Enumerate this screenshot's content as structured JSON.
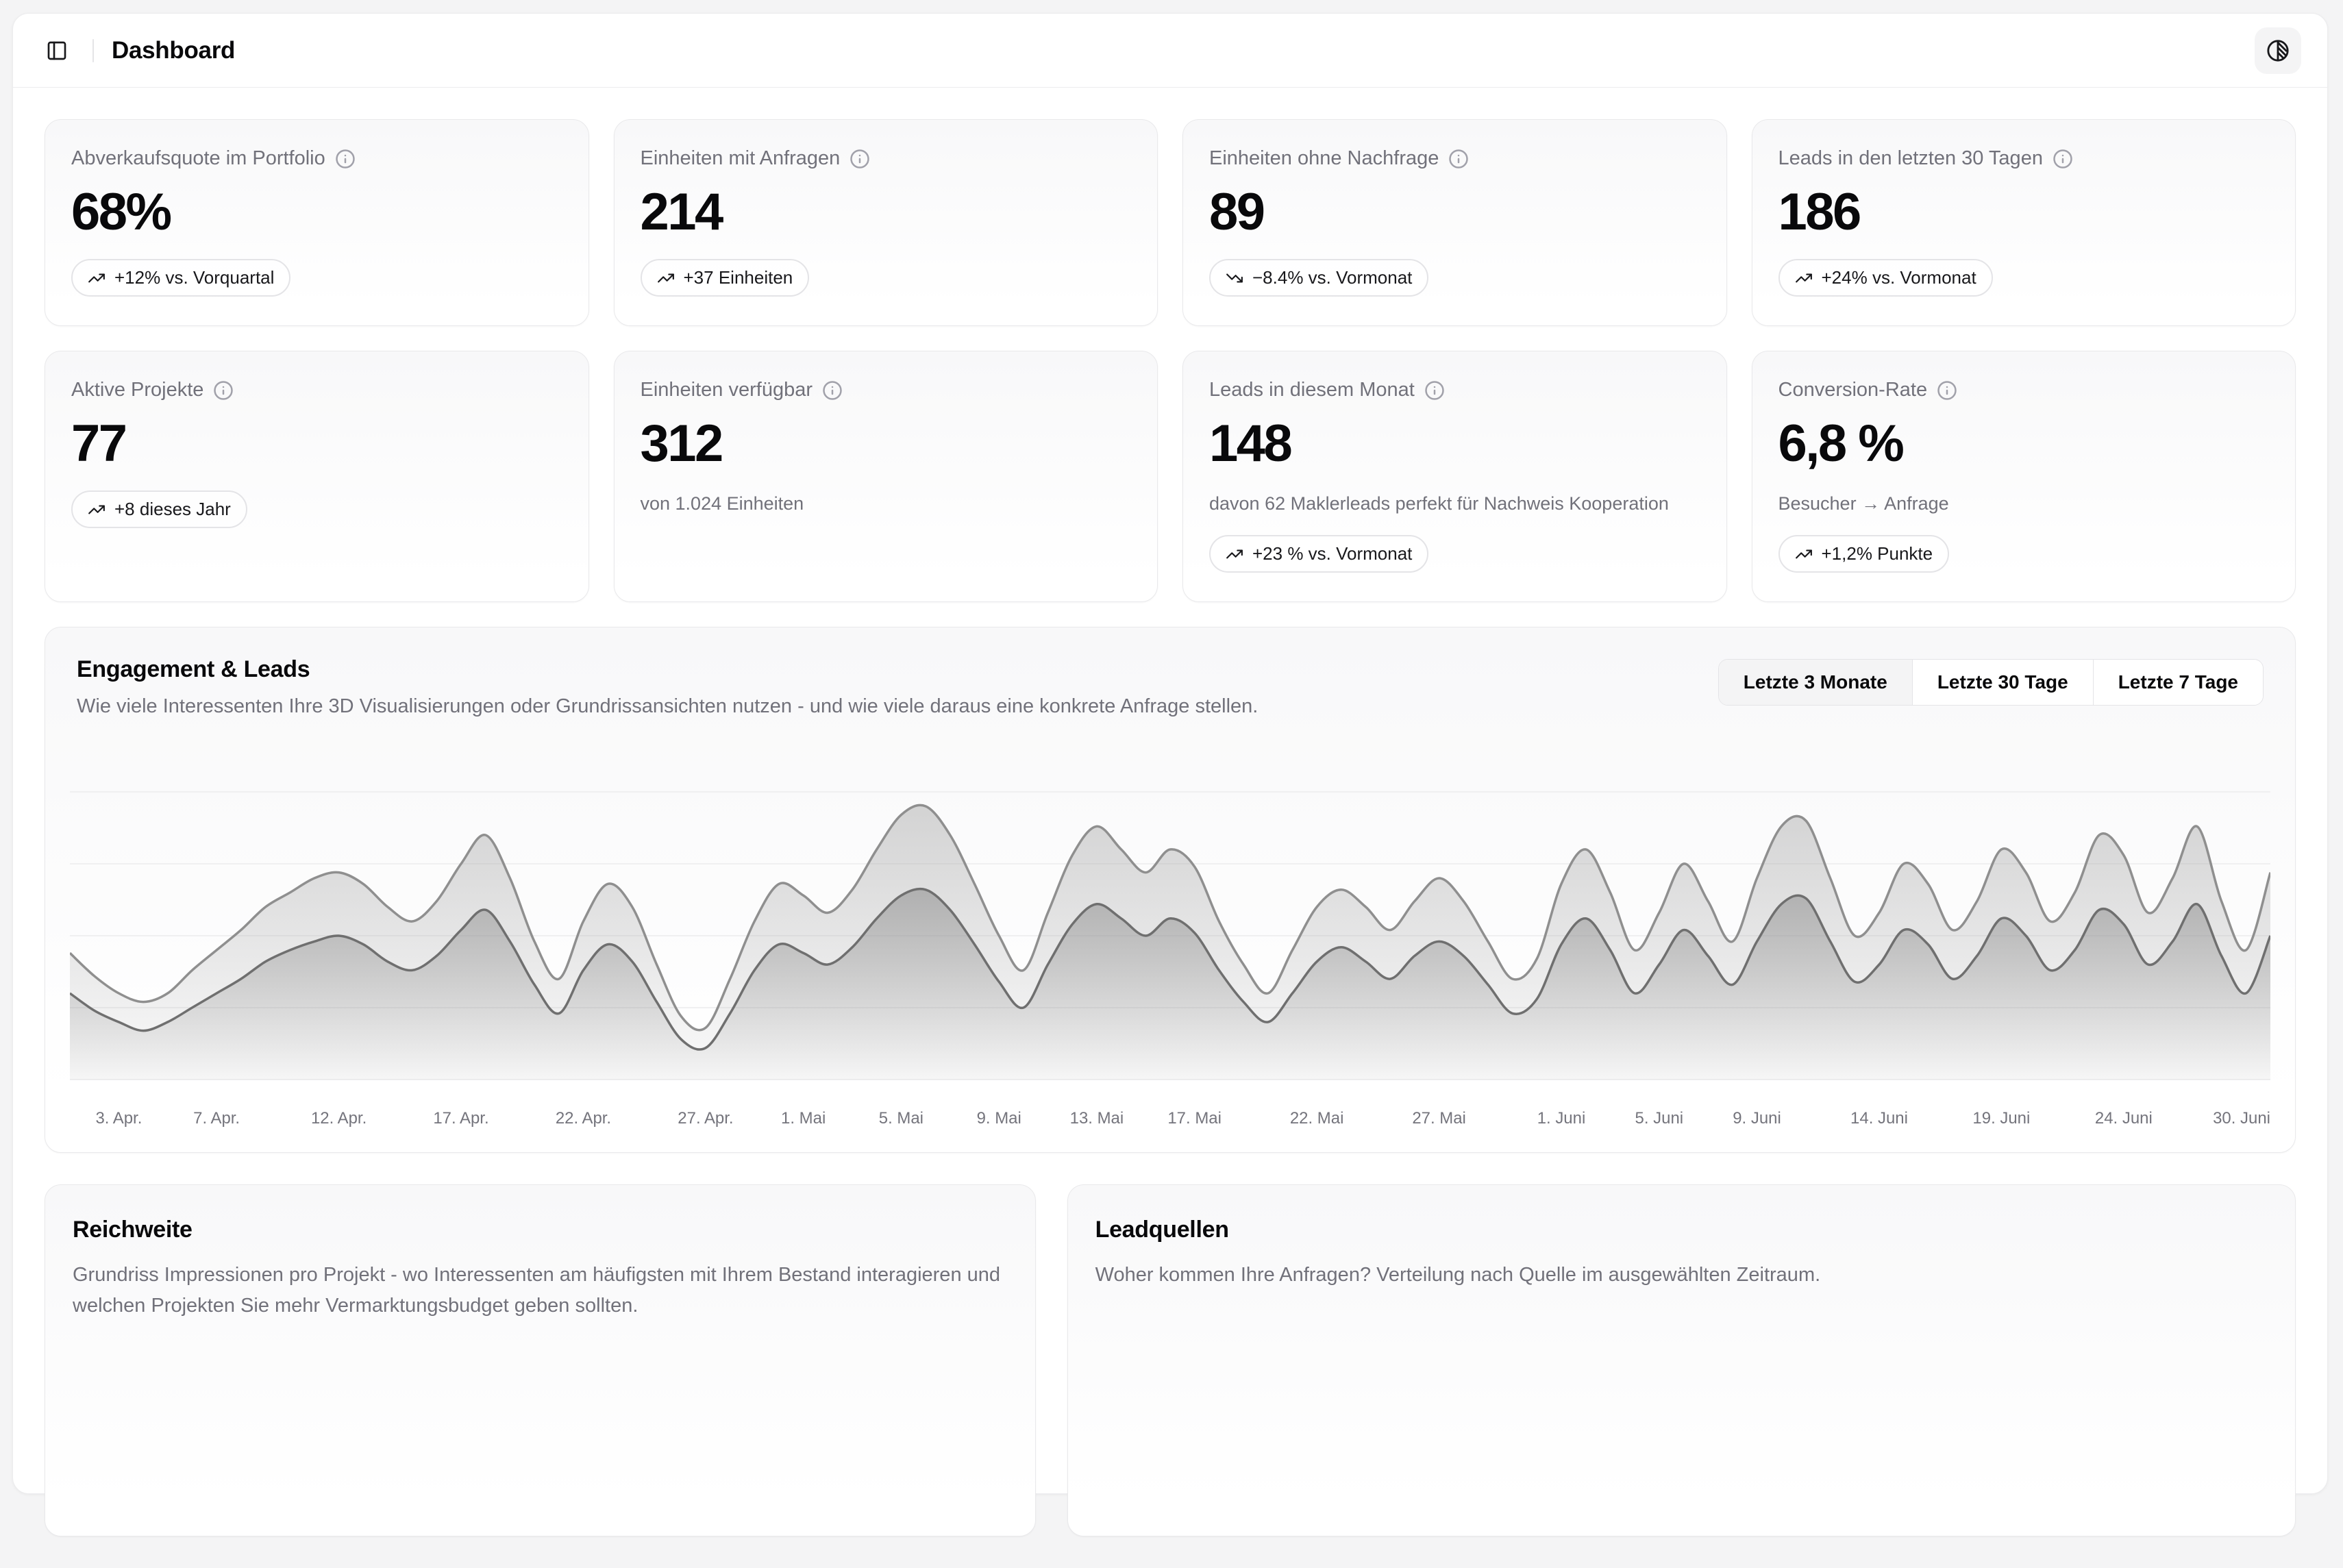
{
  "colors": {
    "page_bg": "#f4f4f5",
    "surface": "#ffffff",
    "card_border": "#e9e9eb",
    "text": "#09090b",
    "muted_text": "#71717a",
    "divider": "#e4e4e7",
    "grid_line": "#f0f0f1",
    "tab_active_bg": "#f4f4f5"
  },
  "header": {
    "title": "Dashboard"
  },
  "stats": [
    {
      "label": "Abverkaufsquote im Portfolio",
      "value": "68%",
      "badge": {
        "direction": "up",
        "text": "+12% vs. Vorquartal"
      }
    },
    {
      "label": "Einheiten mit Anfragen",
      "value": "214",
      "badge": {
        "direction": "up",
        "text": "+37 Einheiten"
      }
    },
    {
      "label": "Einheiten ohne Nachfrage",
      "value": "89",
      "badge": {
        "direction": "down",
        "text": "−8.4% vs. Vormonat"
      }
    },
    {
      "label": "Leads in den letzten 30 Tagen",
      "value": "186",
      "badge": {
        "direction": "up",
        "text": "+24% vs. Vormonat"
      }
    },
    {
      "label": "Aktive Projekte",
      "value": "77",
      "badge": {
        "direction": "up",
        "text": "+8 dieses Jahr"
      }
    },
    {
      "label": "Einheiten verfügbar",
      "value": "312",
      "note": "von 1.024 Einheiten"
    },
    {
      "label": "Leads in diesem Monat",
      "value": "148",
      "note": "davon 62 Maklerleads perfekt für Nachweis Kooperation",
      "badge": {
        "direction": "up",
        "text": "+23 % vs. Vormonat"
      }
    },
    {
      "label": "Conversion-Rate",
      "value": "6,8 %",
      "note": "Besucher → Anfrage",
      "badge": {
        "direction": "up",
        "text": "+1,2% Punkte"
      }
    }
  ],
  "engagement": {
    "title": "Engagement & Leads",
    "subtitle": "Wie viele Interessenten Ihre 3D Visualisierungen oder Grundrissansichten nutzen - und wie viele daraus eine konkrete Anfrage stellen.",
    "tabs": [
      {
        "label": "Letzte 3 Monate",
        "active": true
      },
      {
        "label": "Letzte 30 Tage",
        "active": false
      },
      {
        "label": "Letzte 7 Tage",
        "active": false
      }
    ]
  },
  "chart_data": {
    "type": "area",
    "title": "Engagement & Leads",
    "n_points": 91,
    "ylim": [
      0,
      100
    ],
    "grid": "horizontal",
    "grid_values": [
      0,
      25,
      50,
      75,
      100
    ],
    "y_tick_labels_visible": false,
    "legend_position": "none",
    "x_ticks": [
      {
        "i": 2,
        "label": "3. Apr."
      },
      {
        "i": 6,
        "label": "7. Apr."
      },
      {
        "i": 11,
        "label": "12. Apr."
      },
      {
        "i": 16,
        "label": "17. Apr."
      },
      {
        "i": 21,
        "label": "22. Apr."
      },
      {
        "i": 26,
        "label": "27. Apr."
      },
      {
        "i": 30,
        "label": "1. Mai"
      },
      {
        "i": 34,
        "label": "5. Mai"
      },
      {
        "i": 38,
        "label": "9. Mai"
      },
      {
        "i": 42,
        "label": "13. Mai"
      },
      {
        "i": 46,
        "label": "17. Mai"
      },
      {
        "i": 51,
        "label": "22. Mai"
      },
      {
        "i": 56,
        "label": "27. Mai"
      },
      {
        "i": 61,
        "label": "1. Juni"
      },
      {
        "i": 65,
        "label": "5. Juni"
      },
      {
        "i": 69,
        "label": "9. Juni"
      },
      {
        "i": 74,
        "label": "14. Juni"
      },
      {
        "i": 79,
        "label": "19. Juni"
      },
      {
        "i": 84,
        "label": "24. Juni"
      },
      {
        "i": 90,
        "label": "30. Juni"
      }
    ],
    "series": [
      {
        "name": "nutzung",
        "stroke": "#8f8f8f",
        "fill": "#9c9c9c",
        "values": [
          44,
          36,
          30,
          27,
          30,
          38,
          45,
          52,
          60,
          65,
          70,
          72,
          68,
          60,
          55,
          62,
          75,
          85,
          70,
          48,
          35,
          55,
          68,
          60,
          40,
          22,
          18,
          35,
          55,
          68,
          64,
          58,
          66,
          80,
          92,
          95,
          85,
          68,
          50,
          38,
          58,
          78,
          88,
          80,
          72,
          80,
          74,
          55,
          40,
          30,
          45,
          60,
          66,
          60,
          52,
          62,
          70,
          62,
          48,
          35,
          42,
          68,
          80,
          65,
          45,
          58,
          75,
          62,
          48,
          70,
          88,
          90,
          70,
          50,
          58,
          75,
          68,
          52,
          62,
          80,
          72,
          55,
          65,
          85,
          78,
          58,
          70,
          88,
          62,
          45,
          72
        ]
      },
      {
        "name": "anfragen",
        "stroke": "#6f6f6f",
        "fill": "#8a8a8a",
        "values": [
          30,
          24,
          20,
          17,
          20,
          25,
          30,
          35,
          41,
          45,
          48,
          50,
          47,
          41,
          38,
          43,
          52,
          59,
          48,
          33,
          23,
          38,
          47,
          41,
          27,
          14,
          11,
          23,
          38,
          47,
          44,
          40,
          46,
          56,
          64,
          66,
          59,
          47,
          34,
          25,
          40,
          54,
          61,
          56,
          50,
          56,
          51,
          38,
          27,
          20,
          30,
          41,
          46,
          41,
          35,
          43,
          48,
          43,
          33,
          23,
          28,
          47,
          56,
          45,
          30,
          40,
          52,
          43,
          33,
          48,
          61,
          63,
          48,
          34,
          40,
          52,
          47,
          35,
          43,
          56,
          50,
          38,
          45,
          59,
          54,
          40,
          48,
          61,
          43,
          30,
          50
        ]
      }
    ]
  },
  "reach_card": {
    "title": "Reichweite",
    "description": "Grundriss Impressionen pro Projekt - wo Interessenten am häufigsten mit Ihrem Bestand interagieren und welchen Projekten Sie mehr Vermarktungsbudget geben sollten."
  },
  "leadsources_card": {
    "title": "Leadquellen",
    "description": "Woher kommen Ihre Anfragen? Verteilung nach Quelle im ausgewählten Zeitraum."
  }
}
